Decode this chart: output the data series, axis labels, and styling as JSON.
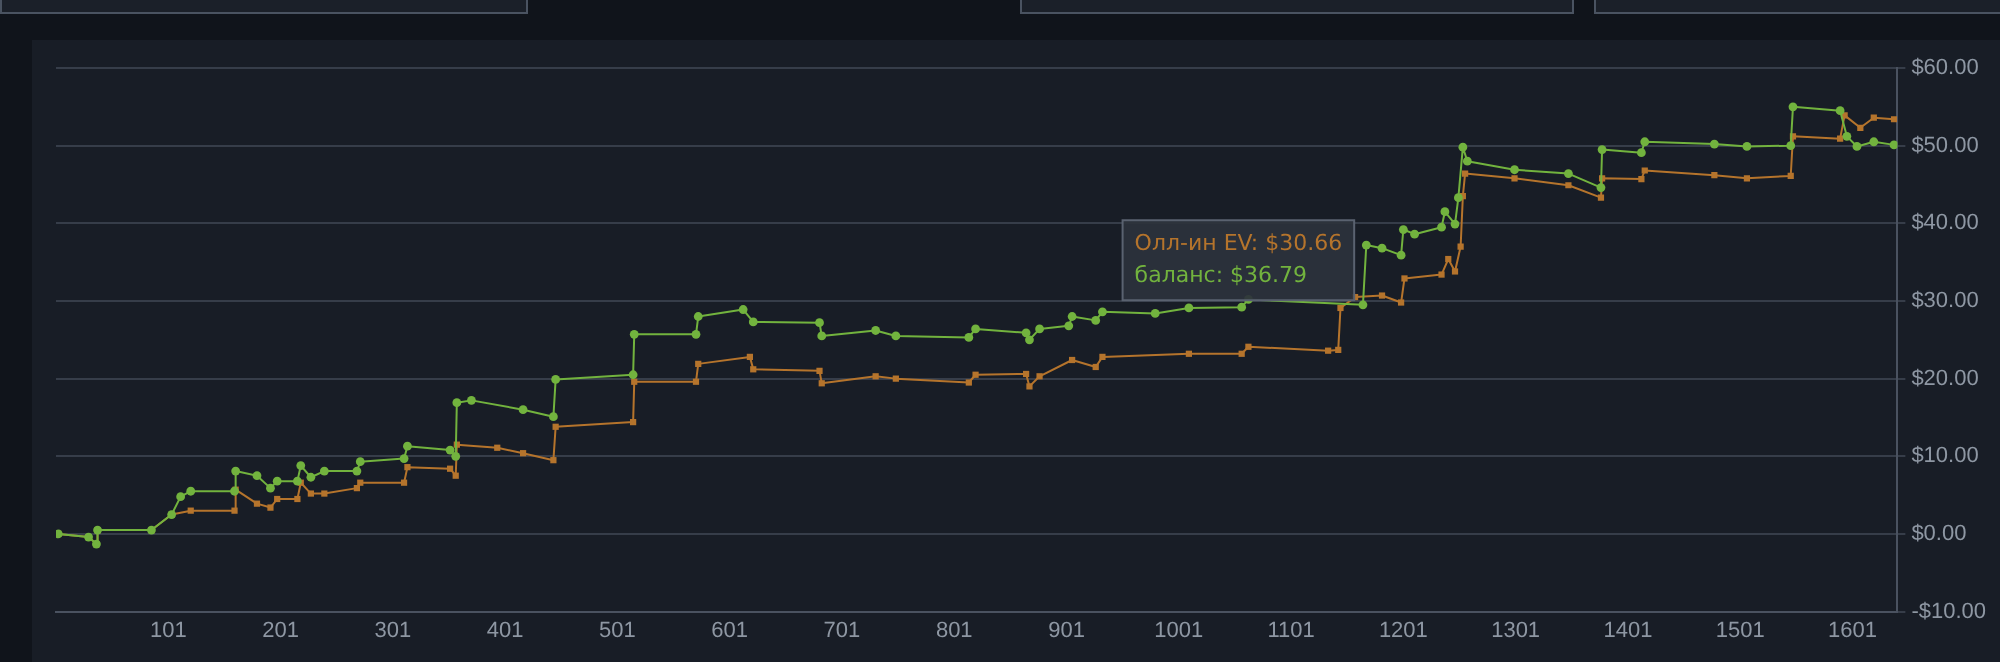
{
  "chart_data": {
    "type": "line",
    "xlim": [
      1,
      1641
    ],
    "xticks": [
      101,
      201,
      301,
      401,
      501,
      601,
      701,
      801,
      901,
      1001,
      1101,
      1201,
      1301,
      1401,
      1501,
      1601
    ],
    "ylim": [
      -10,
      60
    ],
    "yticks": [
      {
        "value": -10,
        "label": "-$10.00"
      },
      {
        "value": 0,
        "label": "$0.00"
      },
      {
        "value": 10,
        "label": "$10.00"
      },
      {
        "value": 20,
        "label": "$20.00"
      },
      {
        "value": 30,
        "label": "$30.00"
      },
      {
        "value": 40,
        "label": "$40.00"
      },
      {
        "value": 50,
        "label": "$50.00"
      },
      {
        "value": 60,
        "label": "$60.00"
      }
    ],
    "grid": "y",
    "legend": false,
    "marker": "circle",
    "series": [
      {
        "color": "#b5742c",
        "marker": "square",
        "x": [
          3,
          30,
          37,
          38,
          86,
          104,
          121,
          160,
          161,
          180,
          192,
          198,
          216,
          219,
          228,
          240,
          269,
          272,
          311,
          314,
          352,
          357,
          358,
          394,
          417,
          444,
          446,
          515,
          516,
          571,
          573,
          619,
          622,
          681,
          683,
          731,
          749,
          814,
          820,
          865,
          868,
          877,
          906,
          927,
          933,
          1010,
          1057,
          1063,
          1134,
          1143,
          1145,
          1158,
          1182,
          1199,
          1202,
          1235,
          1241,
          1247,
          1252,
          1254,
          1256,
          1300,
          1348,
          1377,
          1378,
          1413,
          1416,
          1478,
          1507,
          1546,
          1548,
          1590,
          1594,
          1608,
          1620,
          1638
        ],
        "values": [
          0,
          -0.4,
          -1.3,
          0.5,
          0.5,
          2.5,
          3.0,
          3.0,
          5.7,
          3.9,
          3.4,
          4.5,
          4.5,
          6.6,
          5.2,
          5.2,
          5.9,
          6.6,
          6.6,
          8.6,
          8.4,
          7.5,
          11.5,
          11.1,
          10.4,
          9.5,
          13.8,
          14.4,
          19.6,
          19.6,
          21.9,
          22.8,
          21.2,
          21.0,
          19.4,
          20.3,
          20.0,
          19.5,
          20.5,
          20.6,
          19.0,
          20.3,
          22.4,
          21.5,
          22.8,
          23.2,
          23.2,
          24.1,
          23.6,
          23.7,
          29.1,
          30.5,
          30.7,
          29.8,
          32.9,
          33.4,
          35.4,
          33.8,
          37.0,
          43.5,
          46.4,
          45.8,
          44.9,
          43.3,
          45.8,
          45.7,
          46.8,
          46.2,
          45.8,
          46.1,
          51.2,
          50.9,
          53.9,
          52.3,
          53.6,
          53.4
        ]
      },
      {
        "color": "#72b33e",
        "x": [
          3,
          30,
          37,
          38,
          86,
          104,
          112,
          121,
          160,
          161,
          180,
          192,
          198,
          216,
          219,
          228,
          240,
          269,
          272,
          311,
          314,
          352,
          357,
          358,
          371,
          417,
          444,
          446,
          515,
          516,
          571,
          573,
          613,
          622,
          681,
          683,
          731,
          749,
          814,
          820,
          865,
          868,
          877,
          903,
          906,
          927,
          933,
          980,
          1010,
          1057,
          1063,
          1165,
          1168,
          1182,
          1199,
          1201,
          1211,
          1235,
          1238,
          1247,
          1250,
          1254,
          1258,
          1300,
          1348,
          1377,
          1378,
          1413,
          1416,
          1478,
          1507,
          1546,
          1548,
          1590,
          1596,
          1605,
          1620,
          1638
        ],
        "values": [
          0,
          -0.4,
          -1.3,
          0.5,
          0.5,
          2.5,
          4.8,
          5.5,
          5.5,
          8.1,
          7.5,
          5.9,
          6.8,
          6.8,
          8.8,
          7.3,
          8.1,
          8.1,
          9.3,
          9.7,
          11.3,
          10.8,
          10.0,
          16.9,
          17.2,
          16.0,
          15.1,
          19.9,
          20.5,
          25.7,
          25.7,
          28.0,
          28.9,
          27.3,
          27.2,
          25.5,
          26.2,
          25.5,
          25.3,
          26.4,
          25.9,
          25.0,
          26.4,
          26.8,
          28.0,
          27.5,
          28.6,
          28.4,
          29.1,
          29.2,
          30.2,
          29.5,
          37.2,
          36.8,
          35.9,
          39.2,
          38.6,
          39.5,
          41.5,
          39.9,
          43.3,
          49.8,
          48.0,
          46.9,
          46.4,
          44.6,
          49.5,
          49.1,
          50.5,
          50.2,
          49.9,
          50.0,
          55.0,
          54.5,
          51.2,
          49.9,
          50.5,
          50.1
        ]
      }
    ],
    "annotations": [
      "Олл-ин EV: $30.66",
      "баланс: $36.79"
    ]
  }
}
